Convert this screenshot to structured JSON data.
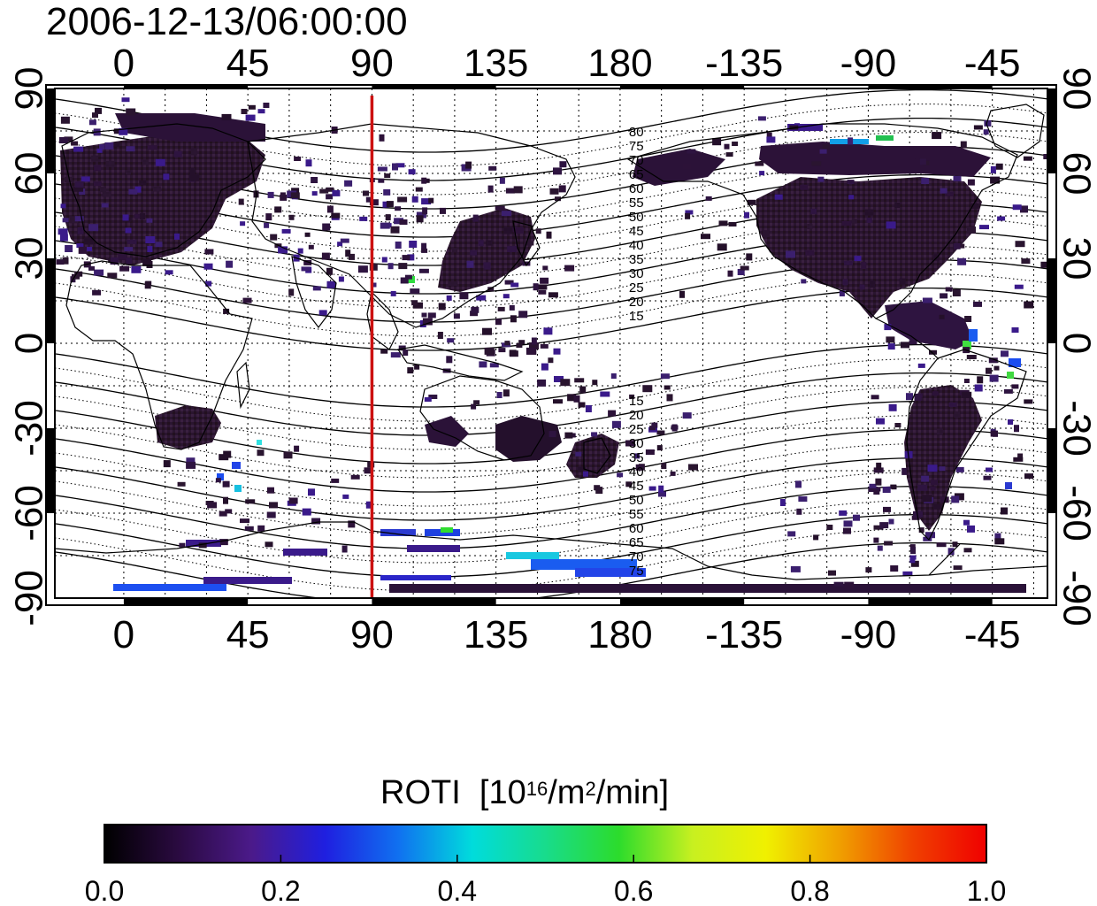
{
  "title": "2006-12-13/06:00:00",
  "colorbar": {
    "label_text": "ROTI",
    "unit_open": "[10",
    "unit_exp1": "16",
    "unit_mid": "/m",
    "unit_exp2": "2",
    "unit_close": "/min]",
    "ticks": [
      "0.0",
      "0.2",
      "0.4",
      "0.6",
      "0.8",
      "1.0"
    ],
    "stops": [
      "#000000",
      "#2a0a40",
      "#4b1a8a",
      "#1f1fe0",
      "#1070f0",
      "#00dcdc",
      "#18dc8c",
      "#2cdc2c",
      "#c8f020",
      "#f0f000",
      "#f0a000",
      "#f04000",
      "#f00000"
    ]
  },
  "map": {
    "x_labels": [
      "0",
      "45",
      "90",
      "135",
      "180",
      "-135",
      "-90",
      "-45"
    ],
    "y_labels_left": [
      "90",
      "60",
      "30",
      "0",
      "-30",
      "-60",
      "-90"
    ],
    "y_labels_right": [
      "90",
      "60",
      "30",
      "0",
      "-30",
      "-60",
      "-90"
    ],
    "longitude_range": [
      -25,
      335
    ],
    "latitude_range": [
      -90,
      90
    ],
    "marker_longitude": 90,
    "marker_color": "#cc1111",
    "contour_labels_north": [
      "80",
      "75",
      "70",
      "65",
      "60",
      "55",
      "50",
      "45",
      "40",
      "35",
      "30",
      "25",
      "20",
      "15"
    ],
    "contour_labels_south": [
      "15",
      "20",
      "25",
      "30",
      "35",
      "40",
      "45",
      "50",
      "55",
      "60",
      "65",
      "70",
      "75"
    ]
  }
}
